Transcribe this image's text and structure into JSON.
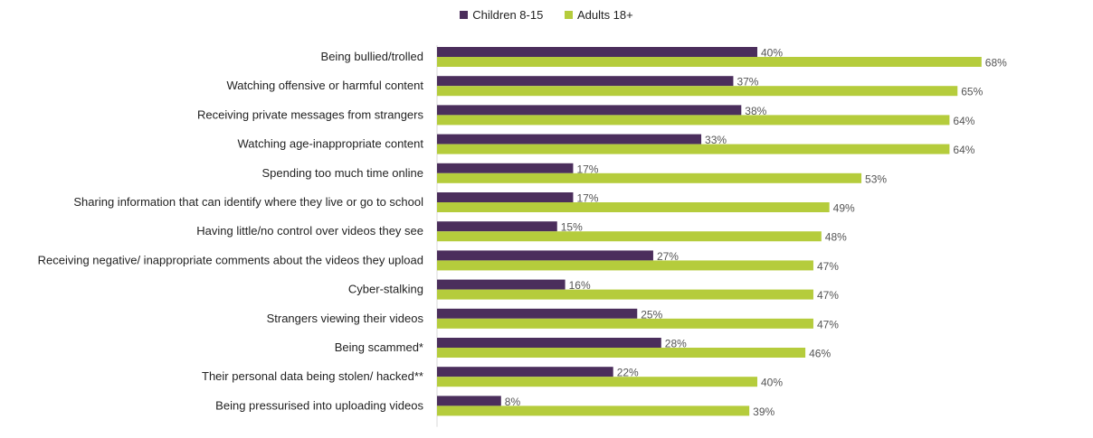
{
  "chart_data": {
    "type": "bar",
    "orientation": "horizontal",
    "categories": [
      "Being bullied/trolled",
      "Watching offensive or harmful content",
      "Receiving private messages from strangers",
      "Watching age-inappropriate content",
      "Spending too much time online",
      "Sharing information that can identify where they live or go to school",
      "Having little/no control over videos they see",
      "Receiving negative/ inappropriate comments about the videos they upload",
      "Cyber-stalking",
      "Strangers viewing their videos",
      "Being scammed*",
      "Their personal data being stolen/ hacked**",
      "Being pressurised into uploading videos"
    ],
    "series": [
      {
        "name": "Children 8-15",
        "color": "#4b2e5c",
        "values": [
          40,
          37,
          38,
          33,
          17,
          17,
          15,
          27,
          16,
          25,
          28,
          22,
          8
        ]
      },
      {
        "name": "Adults 18+",
        "color": "#b5cc3c",
        "values": [
          68,
          65,
          64,
          64,
          53,
          49,
          48,
          47,
          47,
          47,
          46,
          40,
          39
        ]
      }
    ],
    "value_suffix": "%",
    "xlim": [
      0,
      100
    ],
    "legend_position": "top-center",
    "grid": false
  }
}
